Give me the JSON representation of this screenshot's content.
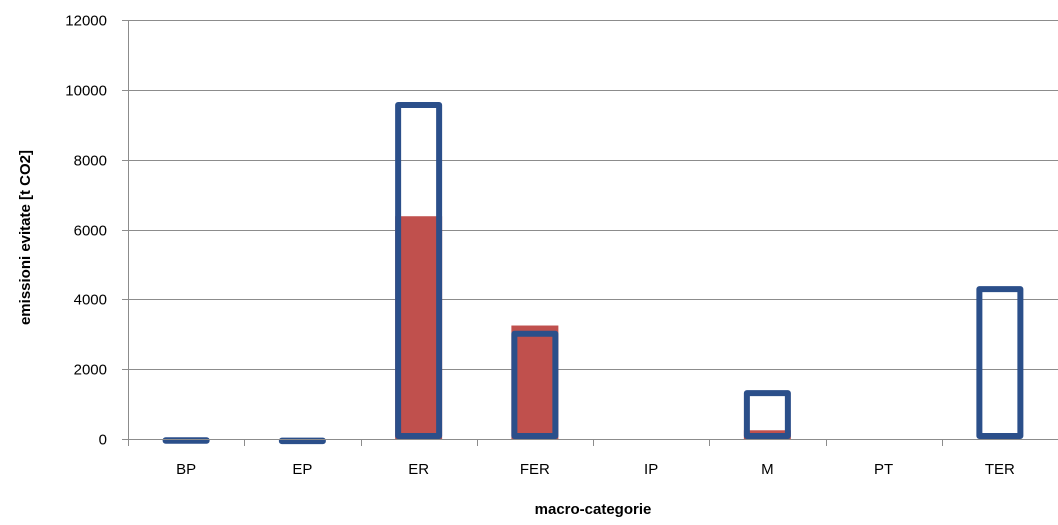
{
  "chart_data": {
    "type": "bar",
    "title": "",
    "xlabel": "macro-categorie",
    "ylabel": "emissioni evitate [t CO2]",
    "ylim": [
      0,
      12000
    ],
    "yticks": [
      0,
      2000,
      4000,
      6000,
      8000,
      10000,
      12000
    ],
    "grid": true,
    "legend": "none",
    "categories": [
      "BP",
      "EP",
      "ER",
      "FER",
      "IP",
      "M",
      "PT",
      "TER"
    ],
    "series": [
      {
        "values": [
          50,
          40,
          9650,
          3100,
          0,
          1400,
          0,
          4380
        ],
        "style": "outline",
        "color": "#2b4f8a"
      },
      {
        "values": [
          0,
          0,
          6380,
          3250,
          0,
          250,
          0,
          0
        ],
        "style": "filled",
        "color": "#c0504d"
      }
    ]
  }
}
